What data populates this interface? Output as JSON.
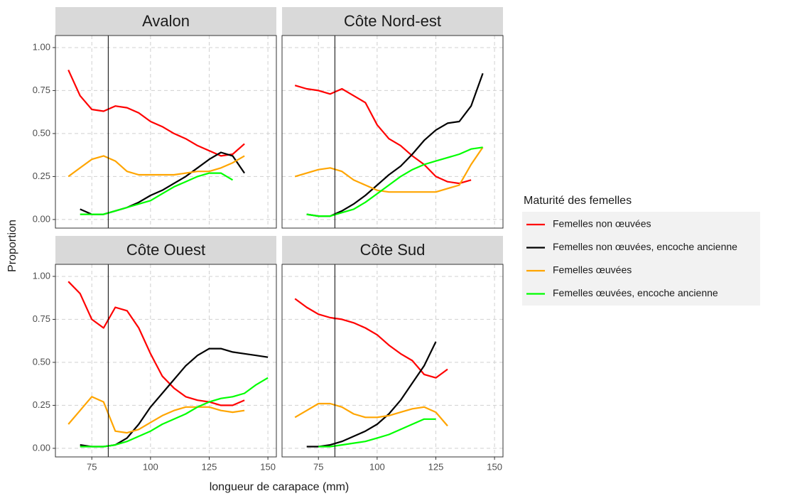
{
  "axis_labels": {
    "x": "longueur de carapace (mm)",
    "y": "Proportion"
  },
  "legend": {
    "title": "Maturité des femelles"
  },
  "chart_data": [
    {
      "type": "line",
      "title": "Avalon",
      "vline": 82,
      "x": [
        65,
        70,
        75,
        80,
        85,
        90,
        95,
        100,
        105,
        110,
        115,
        120,
        125,
        130,
        135,
        140,
        145,
        150
      ],
      "xlim": [
        59.5,
        153.6
      ],
      "ylim": [
        -0.05,
        1.07
      ],
      "xticks": [
        75,
        100,
        125,
        150
      ],
      "yticks": [
        {
          "value": 0,
          "label": "0.00"
        },
        {
          "value": 0.25,
          "label": "0.25"
        },
        {
          "value": 0.5,
          "label": "0.50"
        },
        {
          "value": 0.75,
          "label": "0.75"
        },
        {
          "value": 1,
          "label": "1.00"
        }
      ],
      "grid": true,
      "series": [
        {
          "name": "Femelles non œuvées",
          "color": "#ff0000",
          "values": [
            0.87,
            0.72,
            0.64,
            0.63,
            0.66,
            0.65,
            0.62,
            0.57,
            0.54,
            0.5,
            0.47,
            0.43,
            0.4,
            0.37,
            0.38,
            0.44,
            null,
            null
          ]
        },
        {
          "name": "Femelles non œuvées, encoche ancienne",
          "color": "#000000",
          "values": [
            null,
            0.06,
            0.03,
            0.03,
            0.05,
            0.07,
            0.1,
            0.14,
            0.17,
            0.21,
            0.25,
            0.3,
            0.35,
            0.39,
            0.37,
            0.27,
            null,
            null
          ]
        },
        {
          "name": "Femelles œuvées",
          "color": "#ffa500",
          "values": [
            0.25,
            0.3,
            0.35,
            0.37,
            0.34,
            0.28,
            0.26,
            0.26,
            0.26,
            0.26,
            0.27,
            0.28,
            0.28,
            0.3,
            0.33,
            0.37,
            null,
            null
          ]
        },
        {
          "name": "Femelles œuvées, encoche ancienne",
          "color": "#00ff00",
          "values": [
            null,
            0.03,
            0.03,
            0.03,
            0.05,
            0.07,
            0.09,
            0.11,
            0.15,
            0.19,
            0.22,
            0.25,
            0.27,
            0.27,
            0.23,
            null,
            null,
            null
          ]
        }
      ]
    },
    {
      "type": "line",
      "title": "Côte Nord-est",
      "vline": 82,
      "x": [
        65,
        70,
        75,
        80,
        85,
        90,
        95,
        100,
        105,
        110,
        115,
        120,
        125,
        130,
        135,
        140,
        145,
        150
      ],
      "xlim": [
        59.5,
        153.6
      ],
      "ylim": [
        -0.05,
        1.07
      ],
      "xticks": [
        75,
        100,
        125,
        150
      ],
      "yticks": [
        {
          "value": 0,
          "label": "0.00"
        },
        {
          "value": 0.25,
          "label": "0.25"
        },
        {
          "value": 0.5,
          "label": "0.50"
        },
        {
          "value": 0.75,
          "label": "0.75"
        },
        {
          "value": 1,
          "label": "1.00"
        }
      ],
      "grid": true,
      "series": [
        {
          "name": "Femelles non œuvées",
          "color": "#ff0000",
          "values": [
            0.78,
            0.76,
            0.75,
            0.73,
            0.76,
            0.72,
            0.68,
            0.55,
            0.47,
            0.43,
            0.37,
            0.32,
            0.25,
            0.22,
            0.21,
            0.23,
            null,
            null
          ]
        },
        {
          "name": "Femelles non œuvées, encoche ancienne",
          "color": "#000000",
          "values": [
            null,
            0.03,
            0.02,
            0.02,
            0.05,
            0.09,
            0.14,
            0.2,
            0.26,
            0.31,
            0.38,
            0.46,
            0.52,
            0.56,
            0.57,
            0.66,
            0.85,
            null
          ]
        },
        {
          "name": "Femelles œuvées",
          "color": "#ffa500",
          "values": [
            0.25,
            0.27,
            0.29,
            0.3,
            0.28,
            0.23,
            0.2,
            0.17,
            0.16,
            0.16,
            0.16,
            0.16,
            0.16,
            0.18,
            0.2,
            0.32,
            0.42,
            null
          ]
        },
        {
          "name": "Femelles œuvées, encoche ancienne",
          "color": "#00ff00",
          "values": [
            null,
            0.03,
            0.02,
            0.02,
            0.04,
            0.06,
            0.1,
            0.15,
            0.2,
            0.25,
            0.29,
            0.32,
            0.34,
            0.36,
            0.38,
            0.41,
            0.42,
            null
          ]
        }
      ]
    },
    {
      "type": "line",
      "title": "Côte Ouest",
      "vline": 82,
      "x": [
        65,
        70,
        75,
        80,
        85,
        90,
        95,
        100,
        105,
        110,
        115,
        120,
        125,
        130,
        135,
        140,
        145,
        150
      ],
      "xlim": [
        59.5,
        153.6
      ],
      "ylim": [
        -0.05,
        1.07
      ],
      "xticks": [
        75,
        100,
        125,
        150
      ],
      "yticks": [
        {
          "value": 0,
          "label": "0.00"
        },
        {
          "value": 0.25,
          "label": "0.25"
        },
        {
          "value": 0.5,
          "label": "0.50"
        },
        {
          "value": 0.75,
          "label": "0.75"
        },
        {
          "value": 1,
          "label": "1.00"
        }
      ],
      "grid": true,
      "series": [
        {
          "name": "Femelles non œuvées",
          "color": "#ff0000",
          "values": [
            0.97,
            0.9,
            0.75,
            0.7,
            0.82,
            0.8,
            0.7,
            0.55,
            0.42,
            0.35,
            0.3,
            0.28,
            0.27,
            0.25,
            0.25,
            0.28,
            null,
            null
          ]
        },
        {
          "name": "Femelles non œuvées, encoche ancienne",
          "color": "#000000",
          "values": [
            null,
            0.02,
            0.01,
            0.01,
            0.02,
            0.06,
            0.14,
            0.24,
            0.32,
            0.4,
            0.48,
            0.54,
            0.58,
            0.58,
            0.56,
            0.55,
            0.54,
            0.53
          ]
        },
        {
          "name": "Femelles œuvées",
          "color": "#ffa500",
          "values": [
            0.14,
            0.22,
            0.3,
            0.27,
            0.1,
            0.09,
            0.11,
            0.15,
            0.19,
            0.22,
            0.24,
            0.24,
            0.24,
            0.22,
            0.21,
            0.22,
            null,
            null
          ]
        },
        {
          "name": "Femelles œuvées, encoche ancienne",
          "color": "#00ff00",
          "values": [
            null,
            0.01,
            0.01,
            0.01,
            0.02,
            0.04,
            0.07,
            0.1,
            0.14,
            0.17,
            0.2,
            0.24,
            0.27,
            0.29,
            0.3,
            0.32,
            0.37,
            0.41
          ]
        }
      ]
    },
    {
      "type": "line",
      "title": "Côte Sud",
      "vline": 82,
      "x": [
        65,
        70,
        75,
        80,
        85,
        90,
        95,
        100,
        105,
        110,
        115,
        120,
        125,
        130,
        135,
        140,
        145,
        150
      ],
      "xlim": [
        59.5,
        153.6
      ],
      "ylim": [
        -0.05,
        1.07
      ],
      "xticks": [
        75,
        100,
        125,
        150
      ],
      "yticks": [
        {
          "value": 0,
          "label": "0.00"
        },
        {
          "value": 0.25,
          "label": "0.25"
        },
        {
          "value": 0.5,
          "label": "0.50"
        },
        {
          "value": 0.75,
          "label": "0.75"
        },
        {
          "value": 1,
          "label": "1.00"
        }
      ],
      "grid": true,
      "series": [
        {
          "name": "Femelles non œuvées",
          "color": "#ff0000",
          "values": [
            0.87,
            0.82,
            0.78,
            0.76,
            0.75,
            0.73,
            0.7,
            0.66,
            0.6,
            0.55,
            0.51,
            0.43,
            0.41,
            0.46,
            null,
            null,
            null,
            null
          ]
        },
        {
          "name": "Femelles non œuvées, encoche ancienne",
          "color": "#000000",
          "values": [
            null,
            0.01,
            0.01,
            0.02,
            0.04,
            0.07,
            0.1,
            0.14,
            0.2,
            0.28,
            0.38,
            0.48,
            0.62,
            null,
            null,
            null,
            null,
            null
          ]
        },
        {
          "name": "Femelles œuvées",
          "color": "#ffa500",
          "values": [
            0.18,
            0.22,
            0.26,
            0.26,
            0.24,
            0.2,
            0.18,
            0.18,
            0.19,
            0.21,
            0.23,
            0.24,
            0.21,
            0.13,
            null,
            null,
            null,
            null
          ]
        },
        {
          "name": "Femelles œuvées, encoche ancienne",
          "color": "#00ff00",
          "values": [
            null,
            null,
            0.01,
            0.01,
            0.02,
            0.03,
            0.04,
            0.06,
            0.08,
            0.11,
            0.14,
            0.17,
            0.17,
            null,
            null,
            null,
            null,
            null
          ]
        }
      ]
    }
  ]
}
